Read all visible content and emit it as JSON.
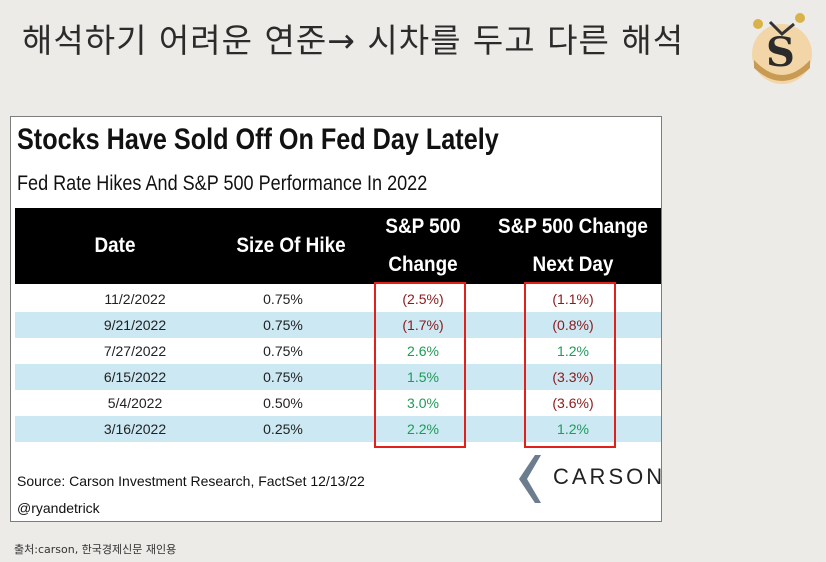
{
  "slide": {
    "title": "해석하기 어려운 연준→ 시차를 두고 다른 해석",
    "footnote": "출처:carson, 한국경제신문 재인용"
  },
  "chart": {
    "headline": "Stocks Have Sold Off On Fed Day Lately",
    "subhead": "Fed Rate Hikes And S&P 500 Performance In 2022",
    "columns": {
      "date": "Date",
      "hike": "Size Of Hike",
      "change_line1": "S&P 500",
      "change_line2": "Change",
      "next_line1": "S&P 500 Change",
      "next_line2": "Next Day"
    },
    "rows": [
      {
        "date": "11/2/2022",
        "hike": "0.75%",
        "change": "(2.5%)",
        "change_sign": "neg",
        "next_day": "(1.1%)",
        "next_sign": "neg"
      },
      {
        "date": "9/21/2022",
        "hike": "0.75%",
        "change": "(1.7%)",
        "change_sign": "neg",
        "next_day": "(0.8%)",
        "next_sign": "neg"
      },
      {
        "date": "7/27/2022",
        "hike": "0.75%",
        "change": "2.6%",
        "change_sign": "pos",
        "next_day": "1.2%",
        "next_sign": "pos"
      },
      {
        "date": "6/15/2022",
        "hike": "0.75%",
        "change": "1.5%",
        "change_sign": "pos",
        "next_day": "(3.3%)",
        "next_sign": "neg"
      },
      {
        "date": "5/4/2022",
        "hike": "0.50%",
        "change": "3.0%",
        "change_sign": "pos",
        "next_day": "(3.6%)",
        "next_sign": "neg"
      },
      {
        "date": "3/16/2022",
        "hike": "0.25%",
        "change": "2.2%",
        "change_sign": "pos",
        "next_day": "1.2%",
        "next_sign": "pos"
      }
    ],
    "source": "Source: Carson Investment Research, FactSet 12/13/22",
    "handle": "@ryandetrick",
    "brand": "CARSON"
  },
  "colors": {
    "negative": "#8b1a1a",
    "positive": "#1f9a57",
    "highlight_box": "#e0201a",
    "stripe": "#cbe8f3"
  }
}
